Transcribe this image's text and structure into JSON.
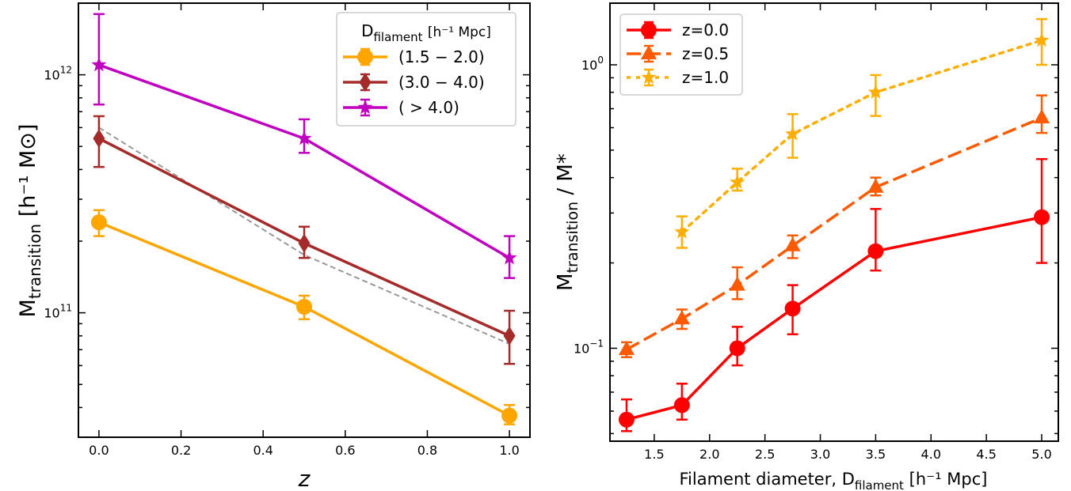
{
  "chart_data": [
    {
      "type": "line",
      "xlabel": "z",
      "ylabel_main": "M",
      "ylabel_sub": "transition",
      "ylabel_unit": "[h⁻¹ M⊙]",
      "xlim": [
        -0.05,
        1.05
      ],
      "ylim": [
        30000000000,
        2000000000000
      ],
      "yscale": "log",
      "xticks": [
        0.0,
        0.2,
        0.4,
        0.6,
        0.8,
        1.0
      ],
      "xtick_labels": [
        "0.0",
        "0.2",
        "0.4",
        "0.6",
        "0.8",
        "1.0"
      ],
      "ytick_major": [
        {
          "value": 100000000000,
          "base": "10",
          "exp": "11"
        },
        {
          "value": 1000000000000,
          "base": "10",
          "exp": "12"
        }
      ],
      "legend": {
        "placement": "top-right",
        "title_main": "D",
        "title_sub": "filament",
        "title_unit": "[h⁻¹ Mpc]"
      },
      "series": [
        {
          "name": "(1.5 − 2.0)",
          "color": "#ffa500",
          "marker": "circle",
          "linestyle": "solid",
          "x": [
            0.0,
            0.5,
            1.0
          ],
          "y": [
            240000000000,
            106000000000,
            37000000000
          ],
          "yerr_low": [
            210000000000,
            94000000000,
            34000000000
          ],
          "yerr_high": [
            270000000000,
            118000000000,
            41000000000
          ]
        },
        {
          "name": "(3.0 − 4.0)",
          "color": "#a52a2a",
          "marker": "diamond",
          "linestyle": "solid",
          "x": [
            0.0,
            0.5,
            1.0
          ],
          "y": [
            540000000000,
            196000000000,
            80000000000
          ],
          "yerr_low": [
            410000000000,
            170000000000,
            61000000000
          ],
          "yerr_high": [
            670000000000,
            230000000000,
            102000000000
          ]
        },
        {
          "name": "( > 4.0)",
          "color": "#bf00bf",
          "marker": "star",
          "linestyle": "solid",
          "x": [
            0.0,
            0.5,
            1.0
          ],
          "y": [
            1100000000000,
            540000000000,
            170000000000
          ],
          "yerr_low": [
            750000000000,
            470000000000,
            140000000000
          ],
          "yerr_high": [
            1800000000000,
            650000000000,
            210000000000
          ]
        }
      ],
      "reference_line": {
        "color": "#999999",
        "linestyle": "dashed",
        "x": [
          0.0,
          0.5,
          1.0
        ],
        "y": [
          600000000000,
          175000000000,
          74000000000
        ]
      }
    },
    {
      "type": "line",
      "xlabel_main": "Filament diameter,  D",
      "xlabel_sub": "filament",
      "xlabel_unit": "[h⁻¹ Mpc]",
      "ylabel_main": "M",
      "ylabel_sub": "transition",
      "ylabel_unit": "/ M*",
      "xlim": [
        1.1,
        5.15
      ],
      "ylim": [
        0.047,
        1.65
      ],
      "yscale": "log",
      "xticks": [
        1.5,
        2.0,
        2.5,
        3.0,
        3.5,
        4.0,
        4.5,
        5.0
      ],
      "xtick_labels": [
        "1.5",
        "2.0",
        "2.5",
        "3.0",
        "3.5",
        "4.0",
        "4.5",
        "5.0"
      ],
      "ytick_major": [
        {
          "value": 0.1,
          "base": "10",
          "exp": "−1"
        },
        {
          "value": 1.0,
          "base": "10",
          "exp": "0"
        }
      ],
      "legend": {
        "placement": "top-left"
      },
      "series": [
        {
          "name": "z=0.0",
          "color": "#ff0000",
          "marker": "circle",
          "linestyle": "solid",
          "x": [
            1.25,
            1.75,
            2.25,
            2.75,
            3.5,
            5.0
          ],
          "y": [
            0.056,
            0.063,
            0.1,
            0.138,
            0.22,
            0.29
          ],
          "yerr_low": [
            0.051,
            0.056,
            0.087,
            0.112,
            0.188,
            0.2
          ],
          "yerr_high": [
            0.066,
            0.075,
            0.119,
            0.167,
            0.31,
            0.465
          ]
        },
        {
          "name": "z=0.5",
          "color": "#ff5a00",
          "marker": "triangle",
          "linestyle": "dashed",
          "x": [
            1.25,
            1.75,
            2.25,
            2.75,
            3.5,
            5.0
          ],
          "y": [
            0.099,
            0.127,
            0.167,
            0.23,
            0.37,
            0.65
          ],
          "yerr_low": [
            0.093,
            0.117,
            0.149,
            0.208,
            0.346,
            0.575
          ],
          "yerr_high": [
            0.105,
            0.137,
            0.193,
            0.25,
            0.4,
            0.78
          ]
        },
        {
          "name": "z=1.0",
          "color": "#ffae00",
          "marker": "star",
          "linestyle": "dotted",
          "x": [
            1.75,
            2.25,
            2.75,
            3.5,
            5.0
          ],
          "y": [
            0.257,
            0.385,
            0.57,
            0.8,
            1.22
          ],
          "yerr_low": [
            0.226,
            0.36,
            0.47,
            0.66,
            1.0
          ],
          "yerr_high": [
            0.292,
            0.43,
            0.67,
            0.92,
            1.45
          ]
        }
      ]
    }
  ]
}
